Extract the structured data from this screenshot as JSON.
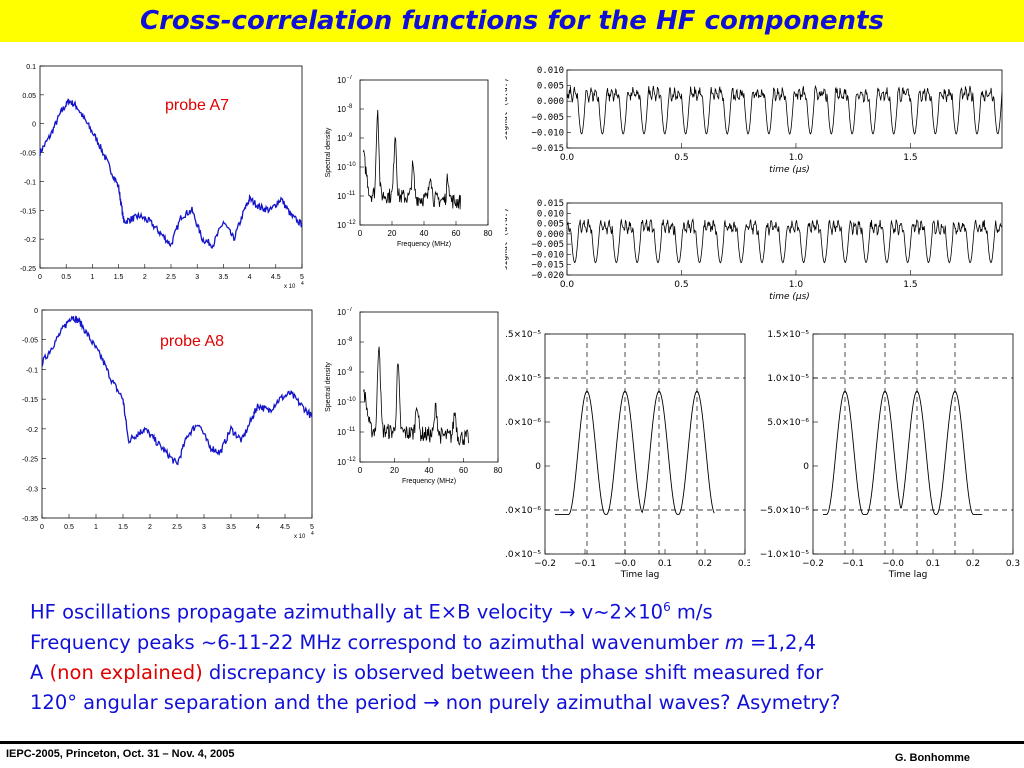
{
  "slide": {
    "title": "Cross-correlation functions for the HF components",
    "footer_left": "IEPC-2005, Princeton, Oct. 31 – Nov. 4, 2005",
    "footer_right": "G. Bonhomme",
    "bullets": {
      "line1": "HF oscillations propagate azimuthally at E×B velocity → v~2×10",
      "line1_sup": "6",
      "line1_end": " m/s",
      "line2_start": "Frequency peaks ~6-11-22 MHz correspond to azimuthal wavenumber ",
      "line2_m": "m",
      "line2_end": " =1,2,4",
      "line3_a": "A ",
      "line3_red": "(non explained)",
      "line3_b": " discrepancy is observed between the phase shift measured for",
      "line4": "120° angular separation and the period → non purely azimuthal waves? Asymetry?"
    }
  },
  "chart_data": [
    {
      "id": "cc-a7",
      "type": "line",
      "label": "probe A7",
      "xlim": [
        0,
        5
      ],
      "ylim": [
        -0.25,
        0.1
      ],
      "x_ticks": [
        "0",
        "0.5",
        "1",
        "1.5",
        "2",
        "2.5",
        "3",
        "3.5",
        "4",
        "4.5",
        "5"
      ],
      "y_ticks": [
        "0.1",
        "0.05",
        "0",
        "-0.05",
        "-0.1",
        "-0.15",
        "-0.2",
        "-0.25"
      ],
      "x_multiplier": "x 10",
      "x_multiplier_exp": "4",
      "color": "#1414c8",
      "x": [
        0,
        0.2,
        0.4,
        0.55,
        0.7,
        0.9,
        1.1,
        1.3,
        1.5,
        1.6,
        1.75,
        1.9,
        2.1,
        2.3,
        2.5,
        2.7,
        2.9,
        3.1,
        3.3,
        3.5,
        3.7,
        3.9,
        4.0,
        4.2,
        4.4,
        4.6,
        4.8,
        5.0
      ],
      "y": [
        -0.05,
        -0.02,
        0.02,
        0.04,
        0.03,
        0.0,
        -0.03,
        -0.07,
        -0.11,
        -0.17,
        -0.165,
        -0.16,
        -0.17,
        -0.19,
        -0.21,
        -0.16,
        -0.15,
        -0.2,
        -0.21,
        -0.17,
        -0.2,
        -0.15,
        -0.13,
        -0.145,
        -0.15,
        -0.13,
        -0.16,
        -0.175
      ]
    },
    {
      "id": "cc-a8",
      "type": "line",
      "label": "probe A8",
      "xlim": [
        0,
        5
      ],
      "ylim": [
        -0.35,
        0
      ],
      "x_ticks": [
        "0",
        "0.5",
        "1",
        "1.5",
        "2",
        "2.5",
        "3",
        "3.5",
        "4",
        "4.5",
        "5"
      ],
      "y_ticks": [
        "0",
        "-0.05",
        "-0.1",
        "-0.15",
        "-0.2",
        "-0.25",
        "-0.3",
        "-0.35"
      ],
      "x_multiplier": "x 10",
      "x_multiplier_exp": "4",
      "color": "#1414c8",
      "x": [
        0,
        0.2,
        0.4,
        0.55,
        0.7,
        0.9,
        1.1,
        1.3,
        1.5,
        1.6,
        1.75,
        1.9,
        2.1,
        2.3,
        2.5,
        2.7,
        2.9,
        3.1,
        3.3,
        3.5,
        3.7,
        3.9,
        4.0,
        4.2,
        4.4,
        4.6,
        4.8,
        5.0
      ],
      "y": [
        -0.09,
        -0.06,
        -0.03,
        -0.01,
        -0.02,
        -0.05,
        -0.08,
        -0.12,
        -0.15,
        -0.22,
        -0.21,
        -0.2,
        -0.22,
        -0.24,
        -0.26,
        -0.21,
        -0.19,
        -0.23,
        -0.24,
        -0.2,
        -0.22,
        -0.18,
        -0.16,
        -0.17,
        -0.15,
        -0.14,
        -0.16,
        -0.18
      ]
    },
    {
      "id": "psd-a7",
      "type": "line",
      "xlabel": "Frequency (MHz)",
      "ylabel": "Spectral density",
      "xlim": [
        0,
        80
      ],
      "y_log_range": [
        -12,
        -7
      ],
      "x_ticks": [
        "0",
        "20",
        "40",
        "60",
        "80"
      ],
      "y_ticks_exp": [
        "-7",
        "-8",
        "-9",
        "-10",
        "-11",
        "-12"
      ],
      "peaks_mhz": [
        11,
        22,
        33,
        44,
        55
      ],
      "color": "#000000"
    },
    {
      "id": "psd-a8",
      "type": "line",
      "xlabel": "Frequency (MHz)",
      "ylabel": "Spectral density",
      "xlim": [
        0,
        80
      ],
      "y_log_range": [
        -12,
        -7
      ],
      "x_ticks": [
        "0",
        "20",
        "40",
        "60",
        "80"
      ],
      "y_ticks_exp": [
        "-7",
        "-8",
        "-9",
        "-10",
        "-11",
        "-12"
      ],
      "peaks_mhz": [
        11,
        22,
        33,
        44,
        55
      ],
      "color": "#000000"
    },
    {
      "id": "signal-1",
      "type": "line",
      "xlabel": "time (μs)",
      "ylabel": "signal (a.u.)",
      "xlim": [
        0,
        1.9
      ],
      "ylim": [
        -0.015,
        0.01
      ],
      "x_ticks": [
        "0.0",
        "0.5",
        "1.0",
        "1.5"
      ],
      "y_ticks": [
        "0.010",
        "0.005",
        "0.000",
        "−0.005",
        "−0.010",
        "−0.015"
      ],
      "color": "#000000"
    },
    {
      "id": "signal-2",
      "type": "line",
      "xlabel": "time (μs)",
      "ylabel": "signal (a.u.)",
      "xlim": [
        0,
        1.9
      ],
      "ylim": [
        -0.02,
        0.015
      ],
      "x_ticks": [
        "0.0",
        "0.5",
        "1.0",
        "1.5"
      ],
      "y_ticks": [
        "0.015",
        "0.010",
        "0.005",
        "0.000",
        "−0.005",
        "−0.010",
        "−0.015",
        "−0.020"
      ],
      "color": "#000000"
    },
    {
      "id": "xcorr-left",
      "type": "line",
      "xlabel": "Time lag",
      "xlim": [
        -0.2,
        0.3
      ],
      "ylim": [
        -1e-05,
        1.5e-05
      ],
      "x_ticks": [
        "−0.2",
        "−0.1",
        "−0.0",
        "0.1",
        "0.2",
        "0.3"
      ],
      "y_ticks": [
        "1.5×10⁻⁵",
        "1.0×10⁻⁵",
        "5.0×10⁻⁶",
        "0",
        "−5.0×10⁻⁶",
        "−1.0×10⁻⁵"
      ],
      "peaks": [
        -0.095,
        0.0,
        0.085,
        0.18
      ],
      "color": "#000000"
    },
    {
      "id": "xcorr-right",
      "type": "line",
      "xlabel": "Time lag",
      "xlim": [
        -0.2,
        0.3
      ],
      "ylim": [
        -1e-05,
        1.5e-05
      ],
      "x_ticks": [
        "−0.2",
        "−0.1",
        "−0.0",
        "0.1",
        "0.2",
        "0.3"
      ],
      "y_ticks": [
        "1.5×10⁻⁵",
        "1.0×10⁻⁵",
        "5.0×10⁻⁶",
        "0",
        "−5.0×10⁻⁶",
        "−1.0×10⁻⁵"
      ],
      "peaks": [
        -0.12,
        -0.02,
        0.06,
        0.155
      ],
      "color": "#000000"
    }
  ]
}
